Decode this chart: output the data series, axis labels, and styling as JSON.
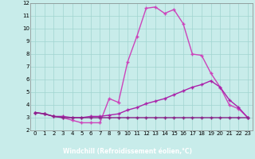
{
  "xlabel": "Windchill (Refroidissement éolien,°C)",
  "xlim": [
    -0.5,
    23.5
  ],
  "ylim": [
    2,
    12
  ],
  "yticks": [
    2,
    3,
    4,
    5,
    6,
    7,
    8,
    9,
    10,
    11,
    12
  ],
  "xticks": [
    0,
    1,
    2,
    3,
    4,
    5,
    6,
    7,
    8,
    9,
    10,
    11,
    12,
    13,
    14,
    15,
    16,
    17,
    18,
    19,
    20,
    21,
    22,
    23
  ],
  "background_color": "#c8ecea",
  "grid_color": "#a0d4d0",
  "xlabel_bg": "#440066",
  "xlabel_fg": "#ffffff",
  "line_color1": "#cc44bb",
  "line_color2": "#aa22aa",
  "line_color3": "#882288",
  "series1_x": [
    0,
    1,
    2,
    3,
    4,
    5,
    6,
    7,
    8,
    9,
    10,
    11,
    12,
    13,
    14,
    15,
    16,
    17,
    18,
    19,
    20,
    21,
    22,
    23
  ],
  "series1_y": [
    3.4,
    3.3,
    3.1,
    3.0,
    2.8,
    2.6,
    2.6,
    2.6,
    4.5,
    4.2,
    7.4,
    9.4,
    11.6,
    11.7,
    11.2,
    11.5,
    10.4,
    8.0,
    7.9,
    6.5,
    5.4,
    4.0,
    3.7,
    3.0
  ],
  "series2_x": [
    0,
    1,
    2,
    3,
    4,
    5,
    6,
    7,
    8,
    9,
    10,
    11,
    12,
    13,
    14,
    15,
    16,
    17,
    18,
    19,
    20,
    21,
    22,
    23
  ],
  "series2_y": [
    3.4,
    3.3,
    3.1,
    3.1,
    3.0,
    3.0,
    3.1,
    3.1,
    3.2,
    3.3,
    3.6,
    3.8,
    4.1,
    4.3,
    4.5,
    4.8,
    5.1,
    5.4,
    5.6,
    5.9,
    5.4,
    4.4,
    3.8,
    3.0
  ],
  "series3_x": [
    0,
    1,
    2,
    3,
    4,
    5,
    6,
    7,
    8,
    9,
    10,
    11,
    12,
    13,
    14,
    15,
    16,
    17,
    18,
    19,
    20,
    21,
    22,
    23
  ],
  "series3_y": [
    3.4,
    3.3,
    3.1,
    3.0,
    3.0,
    3.0,
    3.0,
    3.0,
    3.0,
    3.0,
    3.0,
    3.0,
    3.0,
    3.0,
    3.0,
    3.0,
    3.0,
    3.0,
    3.0,
    3.0,
    3.0,
    3.0,
    3.0,
    3.0
  ],
  "marker": "+",
  "markersize": 3,
  "linewidth": 1.0
}
